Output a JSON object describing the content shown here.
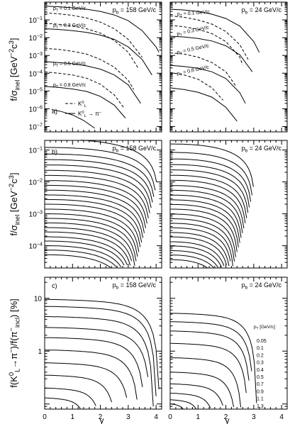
{
  "chart_data": {
    "type": "line",
    "xlabel": "y",
    "x_ticks": [
      "0",
      "1",
      "2",
      "3",
      "4",
      "0",
      "1",
      "2",
      "3",
      "4"
    ],
    "panels": [
      {
        "id": "a",
        "label": "a)",
        "ylabel": "f/σinel [GeV⁻²c³]",
        "beam_labels": [
          "pb = 158 GeV/c",
          "pb = 24 GeV/c"
        ],
        "y_scale": "log",
        "ylim": [
          5e-08,
          1
        ],
        "y_tick_labels": [
          "10⁻¹",
          "10⁻²",
          "10⁻³",
          "10⁻⁴",
          "10⁻⁵",
          "10⁻⁶",
          "10⁻⁷"
        ],
        "pt_labels": [
          "pT = 0.1 GeV/c",
          "pT = 0.3 GeV/c",
          "pT = 0.5 GeV/c",
          "pT = 0.8 GeV/c"
        ],
        "legend": [
          "K⁰L",
          "K⁰L → π⁻"
        ],
        "series": [
          {
            "name": "158 K0L pT=0.1",
            "pb": 158,
            "style": "dashed",
            "x": [
              0,
              0.5,
              1,
              1.5,
              2,
              2.5,
              3,
              3.5
            ],
            "y": [
              0.25,
              0.22,
              0.18,
              0.13,
              0.075,
              0.032,
              0.008,
              0.0008
            ]
          },
          {
            "name": "158 K0L pT=0.3",
            "pb": 158,
            "style": "dashed",
            "x": [
              0,
              0.5,
              1,
              1.5,
              2,
              2.5,
              3,
              3.35
            ],
            "y": [
              0.065,
              0.057,
              0.046,
              0.032,
              0.018,
              0.007,
              0.0015,
              0.0002
            ]
          },
          {
            "name": "158 K0L pT=0.5",
            "pb": 158,
            "style": "dashed",
            "x": [
              0,
              0.5,
              1,
              1.5,
              2,
              2.5,
              3,
              3.2
            ],
            "y": [
              0.0025,
              0.0022,
              0.0017,
              0.0012,
              0.0006,
              0.00022,
              4e-05,
              1.2e-05
            ]
          },
          {
            "name": "158 K0L pT=0.8",
            "pb": 158,
            "style": "dashed",
            "x": [
              0,
              0.5,
              1,
              1.5,
              2,
              2.5,
              2.85
            ],
            "y": [
              0.00012,
              0.0001,
              8e-05,
              5.3e-05,
              2.4e-05,
              6e-06,
              1.1e-06
            ]
          },
          {
            "name": "158 K0L→π⁻ pT=0.1",
            "pb": 158,
            "style": "solid",
            "x": [
              0,
              0.5,
              1,
              1.5,
              2,
              2.5,
              3,
              3.5,
              4,
              4.1
            ],
            "y": [
              0.6,
              0.55,
              0.48,
              0.4,
              0.3,
              0.19,
              0.09,
              0.025,
              0.003,
              0.0015
            ]
          },
          {
            "name": "158 K0L→π⁻ pT=0.3",
            "pb": 158,
            "style": "solid",
            "x": [
              0,
              0.5,
              1,
              1.5,
              2,
              2.5,
              3,
              3.5,
              3.85
            ],
            "y": [
              0.032,
              0.029,
              0.025,
              0.02,
              0.014,
              0.008,
              0.003,
              0.0006,
              8e-05
            ]
          },
          {
            "name": "158 K0L→π⁻ pT=0.5",
            "pb": 158,
            "style": "solid",
            "x": [
              0,
              0.5,
              1,
              1.5,
              2,
              2.5,
              3,
              3.45
            ],
            "y": [
              0.00045,
              0.0004,
              0.00034,
              0.00026,
              0.00017,
              8e-05,
              2.2e-05,
              2e-06
            ]
          },
          {
            "name": "158 K0L→π⁻ pT=0.8",
            "pb": 158,
            "style": "solid",
            "x": [
              0,
              0.5,
              1,
              1.5,
              2,
              2.5,
              2.9
            ],
            "y": [
              1.8e-05,
              1.6e-05,
              1.3e-05,
              9.5e-06,
              5e-06,
              1.6e-06,
              3e-07
            ]
          },
          {
            "name": "158 K0L→π⁻ pT=1.3",
            "pb": 158,
            "style": "solid",
            "x": [
              0.25,
              0.6,
              1,
              1.4,
              1.8,
              2.1
            ],
            "y": [
              9e-07,
              7e-07,
              4.5e-07,
              2.2e-07,
              8e-08,
              3e-08
            ]
          },
          {
            "name": "24 K0L pT=0.1",
            "pb": 24,
            "style": "dashed",
            "x": [
              0,
              0.5,
              1,
              1.5,
              2,
              2.5,
              2.8
            ],
            "y": [
              0.17,
              0.14,
              0.1,
              0.058,
              0.022,
              0.004,
              0.0006
            ]
          },
          {
            "name": "24 K0L pT=0.3",
            "pb": 24,
            "style": "dashed",
            "x": [
              0,
              0.5,
              1,
              1.5,
              2,
              2.5,
              2.6
            ],
            "y": [
              0.05,
              0.041,
              0.03,
              0.017,
              0.006,
              0.0008,
              0.0003
            ]
          },
          {
            "name": "24 K0L pT=0.5",
            "pb": 24,
            "style": "dashed",
            "x": [
              0,
              0.5,
              1,
              1.5,
              2,
              2.35
            ],
            "y": [
              0.0014,
              0.0012,
              0.0008,
              0.0004,
              0.00012,
              2e-05
            ]
          },
          {
            "name": "24 K0L pT=0.8",
            "pb": 24,
            "style": "dashed",
            "x": [
              0,
              0.5,
              1,
              1.5,
              1.9
            ],
            "y": [
              0.00011,
              8e-05,
              4.6e-05,
              1.5e-05,
              3e-06
            ]
          },
          {
            "name": "24 K0L→π⁻ pT=0.1",
            "pb": 24,
            "style": "solid",
            "x": [
              0,
              0.5,
              1,
              1.5,
              2,
              2.5,
              3,
              3.2
            ],
            "y": [
              0.4,
              0.36,
              0.3,
              0.21,
              0.12,
              0.045,
              0.006,
              0.0015
            ]
          },
          {
            "name": "24 K0L→π⁻ pT=0.3",
            "pb": 24,
            "style": "solid",
            "x": [
              0,
              0.5,
              1,
              1.5,
              2,
              2.5,
              2.95
            ],
            "y": [
              0.012,
              0.011,
              0.009,
              0.0065,
              0.0035,
              0.0011,
              0.00012
            ]
          },
          {
            "name": "24 K0L→π⁻ pT=0.5",
            "pb": 24,
            "style": "solid",
            "x": [
              0,
              0.5,
              1,
              1.5,
              2,
              2.5,
              2.7
            ],
            "y": [
              0.00028,
              0.00024,
              0.00019,
              0.00012,
              5e-05,
              8e-06,
              2e-06
            ]
          },
          {
            "name": "24 K0L→π⁻ pT=0.8",
            "pb": 24,
            "style": "solid",
            "x": [
              0,
              0.5,
              1,
              1.5,
              2,
              2.4
            ],
            "y": [
              1.5e-05,
              1.2e-05,
              8.5e-06,
              4.5e-06,
              1.2e-06,
              2e-07
            ]
          }
        ]
      },
      {
        "id": "b",
        "label": "b)",
        "ylabel": "f/σinel [GeV⁻²c³]",
        "beam_labels": [
          "pb = 158 GeV/c",
          "pb = 24 GeV/c"
        ],
        "y_scale": "log",
        "ylim": [
          2e-05,
          0.2
        ],
        "y_tick_labels": [
          "10⁻¹",
          "10⁻²",
          "10⁻³",
          "10⁻⁴"
        ],
        "family": {
          "count": 24,
          "top_values": [
            0.22,
            0.12,
            0.075,
            0.05,
            0.034,
            0.023,
            0.016,
            0.011,
            0.0078,
            0.0055,
            0.0039,
            0.0028,
            0.002,
            0.0014,
            0.001,
            0.00072,
            0.00052,
            0.00037,
            0.00027,
            0.00019,
            0.00014,
            0.0001,
            7.3e-05,
            5.2e-05
          ],
          "end_158": [
            4.1,
            4.05,
            4.0,
            3.95,
            3.9,
            3.85,
            3.8,
            3.75,
            3.7,
            3.65,
            3.6,
            3.55,
            3.5,
            3.45,
            3.4,
            3.35,
            3.3,
            3.25,
            3.2,
            3.15,
            3.1,
            3.05,
            3.0,
            2.95
          ],
          "end_24": [
            3.05,
            3.0,
            2.95,
            2.9,
            2.85,
            2.8,
            2.75,
            2.7,
            2.65,
            2.6,
            2.55,
            2.5,
            2.45,
            2.4,
            2.35,
            2.3,
            2.25,
            2.2,
            2.15,
            2.1,
            2.05,
            2.0,
            1.95,
            1.9
          ],
          "amp_24": 0.7
        }
      },
      {
        "id": "c",
        "label": "c)",
        "ylabel": "f(K⁰L→π⁻)/f(π⁻incl) [%]",
        "beam_labels": [
          "pb = 158 GeV/c",
          "pb = 24 GeV/c"
        ],
        "y_scale": "log",
        "ylim": [
          0.08,
          25
        ],
        "y_tick_labels": [
          "10",
          "1"
        ],
        "legend_title": "pT [GeV/c]",
        "pt_values": [
          "0.05",
          "0.1",
          "0.2",
          "0.3",
          "0.4",
          "0.5",
          "0.7",
          "0.9",
          "1.1",
          "1.3"
        ],
        "series_158": {
          "pt": [
            0.05,
            0.1,
            0.2,
            0.3,
            0.4,
            0.5,
            0.7,
            0.9,
            1.1,
            1.3
          ],
          "start": [
            9.5,
            7.0,
            4.5,
            2.8,
            1.8,
            1.05,
            0.6,
            0.35,
            0.2,
            0.13
          ],
          "end_x": [
            4.1,
            4.0,
            3.9,
            3.8,
            3.6,
            3.4,
            3.1,
            2.6,
            2.1,
            1.6
          ]
        },
        "series_24": {
          "pt": [
            0.05,
            0.1,
            0.2,
            0.3,
            0.4,
            0.5,
            0.7,
            0.9,
            1.1,
            1.3
          ],
          "start": [
            5.2,
            3.6,
            2.4,
            1.4,
            0.75,
            0.4,
            0.24,
            0.16,
            0.12,
            0.1
          ],
          "end_x": [
            3.1,
            3.0,
            2.9,
            2.8,
            2.6,
            2.4,
            2.1,
            1.7,
            1.2,
            0.7
          ]
        }
      }
    ]
  }
}
